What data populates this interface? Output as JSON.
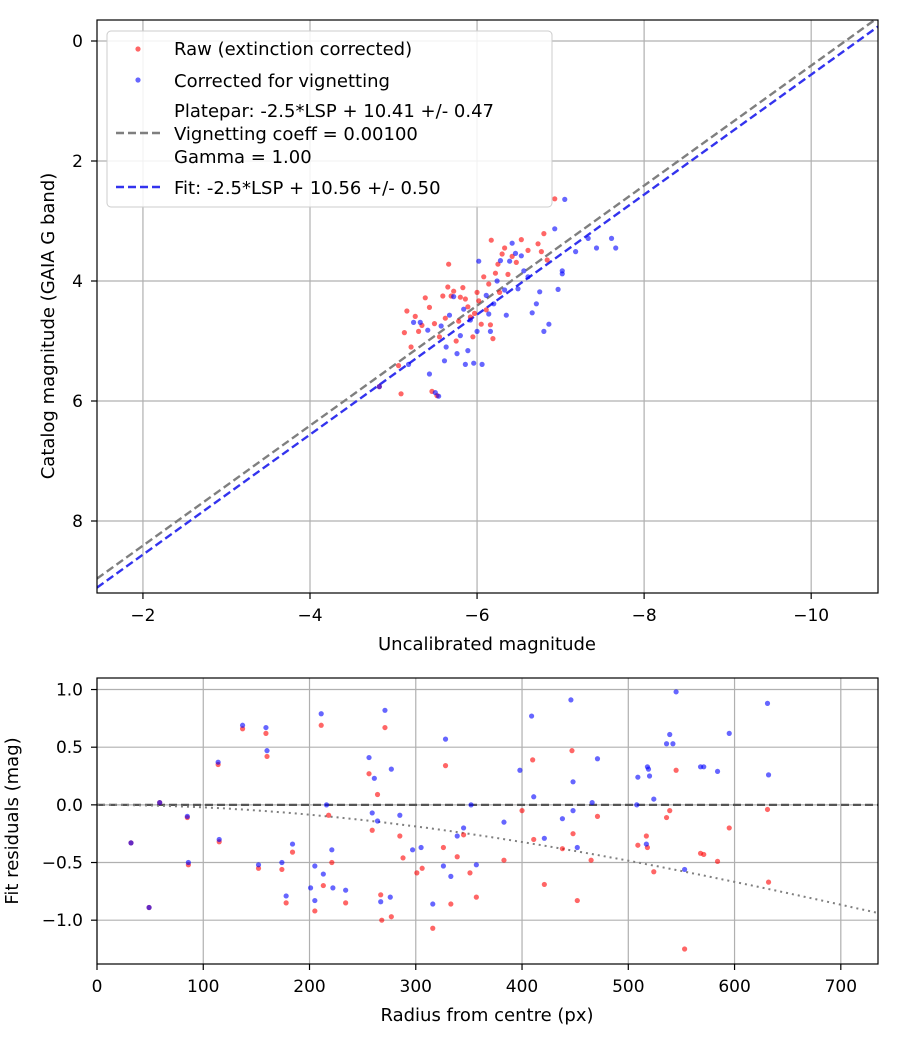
{
  "chart_data": [
    {
      "type": "scatter",
      "xlabel": "Uncalibrated magnitude",
      "ylabel": "Catalog magnitude (GAIA G band)",
      "xlim": [
        -1.45,
        -10.8
      ],
      "ylim": [
        -0.35,
        9.2
      ],
      "x_inverted": true,
      "y_inverted": true,
      "xticks": [
        -2,
        -4,
        -6,
        -8,
        -10
      ],
      "xtick_labels": [
        "−2",
        "−4",
        "−6",
        "−8",
        "−10"
      ],
      "yticks": [
        0,
        2,
        4,
        6,
        8
      ],
      "ytick_labels": [
        "0",
        "2",
        "4",
        "6",
        "8"
      ],
      "grid": true,
      "legend_position": "upper left",
      "series": [
        {
          "name": "Raw (extinction corrected)",
          "kind": "scatter",
          "color": "#ff0000",
          "points": [
            [
              -4.83,
              5.76
            ],
            [
              -5.06,
              5.41
            ],
            [
              -5.09,
              5.88
            ],
            [
              -5.13,
              4.86
            ],
            [
              -5.16,
              4.5
            ],
            [
              -5.21,
              5.1
            ],
            [
              -5.26,
              4.59
            ],
            [
              -5.3,
              4.84
            ],
            [
              -5.34,
              4.74
            ],
            [
              -5.38,
              4.28
            ],
            [
              -5.43,
              4.44
            ],
            [
              -5.46,
              5.84
            ],
            [
              -5.49,
              4.71
            ],
            [
              -5.52,
              5.91
            ],
            [
              -5.55,
              4.93
            ],
            [
              -5.59,
              4.25
            ],
            [
              -5.62,
              4.62
            ],
            [
              -5.65,
              4.1
            ],
            [
              -5.66,
              3.72
            ],
            [
              -5.69,
              4.25
            ],
            [
              -5.72,
              4.17
            ],
            [
              -5.75,
              5.0
            ],
            [
              -5.78,
              4.67
            ],
            [
              -5.8,
              4.27
            ],
            [
              -5.83,
              4.11
            ],
            [
              -5.86,
              4.3
            ],
            [
              -5.89,
              4.43
            ],
            [
              -5.92,
              4.6
            ],
            [
              -5.95,
              4.93
            ],
            [
              -5.97,
              4.54
            ],
            [
              -6.0,
              4.19
            ],
            [
              -6.02,
              4.33
            ],
            [
              -6.05,
              4.72
            ],
            [
              -6.08,
              3.93
            ],
            [
              -6.11,
              4.48
            ],
            [
              -6.14,
              4.05
            ],
            [
              -6.16,
              4.73
            ],
            [
              -6.17,
              3.32
            ],
            [
              -6.19,
              4.96
            ],
            [
              -6.22,
              3.87
            ],
            [
              -6.25,
              3.72
            ],
            [
              -6.27,
              4.19
            ],
            [
              -6.3,
              3.55
            ],
            [
              -6.33,
              3.45
            ],
            [
              -6.37,
              3.89
            ],
            [
              -6.42,
              3.59
            ],
            [
              -6.47,
              3.69
            ],
            [
              -6.53,
              3.31
            ],
            [
              -6.61,
              3.49
            ],
            [
              -6.73,
              3.38
            ],
            [
              -6.77,
              3.51
            ],
            [
              -6.8,
              3.21
            ],
            [
              -6.84,
              3.65
            ],
            [
              -6.93,
              2.63
            ]
          ]
        },
        {
          "name": "Corrected for vignetting",
          "kind": "scatter",
          "color": "#0000ff",
          "points": [
            [
              -4.83,
              5.76
            ],
            [
              -5.18,
              5.39
            ],
            [
              -5.24,
              4.69
            ],
            [
              -5.32,
              4.69
            ],
            [
              -5.41,
              4.82
            ],
            [
              -5.43,
              5.55
            ],
            [
              -5.5,
              5.86
            ],
            [
              -5.54,
              5.92
            ],
            [
              -5.57,
              4.75
            ],
            [
              -5.61,
              5.33
            ],
            [
              -5.63,
              5.1
            ],
            [
              -5.67,
              4.57
            ],
            [
              -5.72,
              4.26
            ],
            [
              -5.76,
              5.21
            ],
            [
              -5.8,
              4.91
            ],
            [
              -5.84,
              4.47
            ],
            [
              -5.86,
              5.39
            ],
            [
              -5.89,
              5.16
            ],
            [
              -5.92,
              4.65
            ],
            [
              -5.96,
              5.37
            ],
            [
              -6.0,
              4.84
            ],
            [
              -6.02,
              3.67
            ],
            [
              -6.06,
              5.39
            ],
            [
              -6.11,
              4.24
            ],
            [
              -6.14,
              4.55
            ],
            [
              -6.16,
              4.84
            ],
            [
              -6.2,
              4.38
            ],
            [
              -6.24,
              4.0
            ],
            [
              -6.28,
              3.66
            ],
            [
              -6.33,
              4.15
            ],
            [
              -6.35,
              4.57
            ],
            [
              -6.39,
              3.67
            ],
            [
              -6.42,
              3.37
            ],
            [
              -6.46,
              3.54
            ],
            [
              -6.49,
              4.13
            ],
            [
              -6.53,
              3.58
            ],
            [
              -6.56,
              3.83
            ],
            [
              -6.61,
              3.93
            ],
            [
              -6.66,
              4.53
            ],
            [
              -6.71,
              4.38
            ],
            [
              -6.75,
              4.18
            ],
            [
              -6.8,
              4.84
            ],
            [
              -6.86,
              4.72
            ],
            [
              -6.93,
              3.13
            ],
            [
              -6.97,
              4.14
            ],
            [
              -7.02,
              3.83
            ],
            [
              -7.05,
              2.64
            ],
            [
              -7.18,
              3.51
            ],
            [
              -7.33,
              3.29
            ],
            [
              -7.43,
              3.45
            ],
            [
              -7.61,
              3.29
            ],
            [
              -7.66,
              3.45
            ],
            [
              -7.02,
              3.88
            ]
          ]
        },
        {
          "name": "Platepar: -2.5*LSP + 10.41 +/- 0.47\nVignetting coeff = 0.00100\nGamma = 1.00",
          "legend_lines": [
            "Platepar: -2.5*LSP + 10.41 +/- 0.47",
            "Vignetting coeff = 0.00100",
            "Gamma = 1.00"
          ],
          "kind": "dashed-line",
          "color": "#7f7f7f",
          "slope": 1,
          "intercept": 10.41
        },
        {
          "name": "Fit: -2.5*LSP + 10.56 +/- 0.50",
          "legend_lines": [
            "Fit: -2.5*LSP + 10.56 +/- 0.50"
          ],
          "kind": "dashed-line",
          "color": "#3333ee",
          "slope": 1,
          "intercept": 10.56
        }
      ]
    },
    {
      "type": "scatter",
      "xlabel": "Radius from centre (px)",
      "ylabel": "Fit residuals (mag)",
      "xlim": [
        0,
        735
      ],
      "ylim": [
        -1.38,
        1.1
      ],
      "xticks": [
        0,
        100,
        200,
        300,
        400,
        500,
        600,
        700
      ],
      "xtick_labels": [
        "0",
        "100",
        "200",
        "300",
        "400",
        "500",
        "600",
        "700"
      ],
      "yticks": [
        1.0,
        0.5,
        0.0,
        -0.5,
        -1.0
      ],
      "ytick_labels": [
        "1.0",
        "0.5",
        "0.0",
        "−0.5",
        "−1.0"
      ],
      "grid": true,
      "zero_line": 0,
      "vignetting_curve": {
        "coeff": 0.001,
        "style": "dotted",
        "color": "#7f7f7f"
      },
      "series": [
        {
          "name": "Raw (extinction corrected)",
          "color": "#ff0000",
          "points": [
            [
              32,
              -0.33
            ],
            [
              49,
              -0.89
            ],
            [
              59,
              0.02
            ],
            [
              85,
              -0.11
            ],
            [
              86,
              -0.52
            ],
            [
              114,
              0.35
            ],
            [
              115,
              -0.32
            ],
            [
              137,
              0.66
            ],
            [
              152,
              -0.55
            ],
            [
              159,
              0.62
            ],
            [
              160,
              0.42
            ],
            [
              174,
              -0.56
            ],
            [
              178,
              -0.85
            ],
            [
              184,
              -0.41
            ],
            [
              205,
              -0.92
            ],
            [
              211,
              0.69
            ],
            [
              213,
              -0.7
            ],
            [
              218,
              -0.09
            ],
            [
              221,
              -0.5
            ],
            [
              234,
              -0.85
            ],
            [
              256,
              0.27
            ],
            [
              259,
              -0.22
            ],
            [
              264,
              0.09
            ],
            [
              267,
              -0.78
            ],
            [
              268,
              -1.0
            ],
            [
              271,
              0.67
            ],
            [
              277,
              -0.97
            ],
            [
              285,
              -0.27
            ],
            [
              288,
              -0.46
            ],
            [
              301,
              -0.59
            ],
            [
              306,
              -0.55
            ],
            [
              316,
              -1.07
            ],
            [
              326,
              -0.37
            ],
            [
              328,
              0.34
            ],
            [
              333,
              -0.86
            ],
            [
              339,
              -0.45
            ],
            [
              345,
              -0.26
            ],
            [
              351,
              -0.59
            ],
            [
              357,
              -0.8
            ],
            [
              383,
              -0.48
            ],
            [
              400,
              -0.05
            ],
            [
              410,
              0.39
            ],
            [
              411,
              -0.3
            ],
            [
              421,
              -0.69
            ],
            [
              438,
              -0.38
            ],
            [
              447,
              0.47
            ],
            [
              448,
              -0.25
            ],
            [
              452,
              -0.83
            ],
            [
              465,
              -0.48
            ],
            [
              471,
              -0.1
            ],
            [
              509,
              -0.35
            ],
            [
              517,
              -0.27
            ],
            [
              518,
              -0.37
            ],
            [
              524,
              -0.58
            ],
            [
              536,
              -0.11
            ],
            [
              539,
              -0.05
            ],
            [
              545,
              0.3
            ],
            [
              553,
              -1.25
            ],
            [
              568,
              -0.42
            ],
            [
              571,
              -0.43
            ],
            [
              584,
              -0.49
            ],
            [
              595,
              -0.2
            ],
            [
              631,
              -0.04
            ],
            [
              632,
              -0.67
            ]
          ]
        },
        {
          "name": "Corrected for vignetting",
          "color": "#0000ff",
          "points": [
            [
              32,
              -0.33
            ],
            [
              49,
              -0.89
            ],
            [
              59,
              0.02
            ],
            [
              85,
              -0.1
            ],
            [
              86,
              -0.5
            ],
            [
              114,
              0.37
            ],
            [
              115,
              -0.3
            ],
            [
              137,
              0.69
            ],
            [
              152,
              -0.52
            ],
            [
              159,
              0.67
            ],
            [
              160,
              0.47
            ],
            [
              174,
              -0.5
            ],
            [
              178,
              -0.79
            ],
            [
              184,
              -0.34
            ],
            [
              201,
              -0.72
            ],
            [
              205,
              -0.83
            ],
            [
              205,
              -0.53
            ],
            [
              211,
              0.79
            ],
            [
              213,
              -0.6
            ],
            [
              216,
              0.0
            ],
            [
              221,
              -0.39
            ],
            [
              222,
              -0.72
            ],
            [
              234,
              -0.74
            ],
            [
              256,
              0.41
            ],
            [
              259,
              -0.07
            ],
            [
              261,
              0.23
            ],
            [
              264,
              -0.14
            ],
            [
              267,
              -0.84
            ],
            [
              271,
              0.82
            ],
            [
              276,
              -0.8
            ],
            [
              277,
              0.31
            ],
            [
              285,
              -0.09
            ],
            [
              297,
              -0.39
            ],
            [
              305,
              -0.37
            ],
            [
              316,
              -0.86
            ],
            [
              326,
              -0.53
            ],
            [
              328,
              0.57
            ],
            [
              333,
              -0.62
            ],
            [
              339,
              -0.27
            ],
            [
              345,
              -0.2
            ],
            [
              352,
              0.0
            ],
            [
              357,
              -0.52
            ],
            [
              383,
              -0.15
            ],
            [
              398,
              0.3
            ],
            [
              409,
              0.77
            ],
            [
              411,
              0.07
            ],
            [
              421,
              -0.29
            ],
            [
              438,
              -0.12
            ],
            [
              446,
              0.91
            ],
            [
              448,
              0.2
            ],
            [
              448,
              -0.05
            ],
            [
              452,
              -0.37
            ],
            [
              466,
              0.02
            ],
            [
              471,
              0.4
            ],
            [
              508,
              0.0
            ],
            [
              509,
              0.24
            ],
            [
              517,
              -0.34
            ],
            [
              518,
              0.33
            ],
            [
              519,
              0.31
            ],
            [
              520,
              0.25
            ],
            [
              524,
              0.05
            ],
            [
              536,
              0.53
            ],
            [
              539,
              0.61
            ],
            [
              542,
              0.53
            ],
            [
              545,
              0.98
            ],
            [
              553,
              -0.56
            ],
            [
              568,
              0.33
            ],
            [
              571,
              0.33
            ],
            [
              584,
              0.29
            ],
            [
              595,
              0.62
            ],
            [
              631,
              0.88
            ],
            [
              632,
              0.26
            ]
          ]
        }
      ]
    }
  ]
}
